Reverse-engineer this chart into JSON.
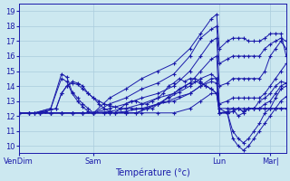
{
  "xlabel": "Température (°c)",
  "bg_color": "#cce8f0",
  "line_color": "#1a1aaa",
  "grid_color": "#aaccdd",
  "ylim": [
    9.5,
    19.5
  ],
  "yticks": [
    10,
    11,
    12,
    13,
    14,
    15,
    16,
    17,
    18,
    19
  ],
  "xtick_labels": [
    "VenDim",
    "Sam",
    "Lun",
    "Mar|"
  ],
  "xtick_positions": [
    0.0,
    0.28,
    0.75,
    0.94
  ],
  "series": [
    {
      "points": [
        [
          0,
          12.2
        ],
        [
          0.06,
          12.2
        ],
        [
          0.12,
          12.5
        ],
        [
          0.16,
          14.8
        ],
        [
          0.18,
          14.6
        ],
        [
          0.2,
          13.6
        ],
        [
          0.22,
          13.2
        ],
        [
          0.24,
          12.8
        ],
        [
          0.26,
          12.5
        ],
        [
          0.28,
          12.2
        ],
        [
          0.32,
          12.2
        ],
        [
          0.36,
          12.2
        ],
        [
          0.4,
          12.2
        ],
        [
          0.44,
          12.2
        ],
        [
          0.48,
          12.5
        ],
        [
          0.52,
          12.8
        ],
        [
          0.56,
          13.0
        ],
        [
          0.6,
          13.3
        ],
        [
          0.64,
          13.5
        ],
        [
          0.68,
          14.0
        ],
        [
          0.72,
          14.3
        ],
        [
          0.74,
          14.2
        ],
        [
          0.75,
          12.2
        ],
        [
          0.78,
          12.2
        ],
        [
          0.8,
          10.5
        ],
        [
          0.82,
          10.0
        ],
        [
          0.84,
          9.7
        ],
        [
          0.86,
          10.0
        ],
        [
          0.88,
          10.5
        ],
        [
          0.9,
          11.0
        ],
        [
          0.92,
          11.5
        ],
        [
          0.94,
          12.0
        ],
        [
          0.96,
          12.5
        ],
        [
          0.98,
          13.0
        ],
        [
          1.0,
          13.3
        ]
      ]
    },
    {
      "points": [
        [
          0,
          12.2
        ],
        [
          0.06,
          12.2
        ],
        [
          0.12,
          12.5
        ],
        [
          0.16,
          14.5
        ],
        [
          0.18,
          14.3
        ],
        [
          0.2,
          13.5
        ],
        [
          0.22,
          13.0
        ],
        [
          0.24,
          12.6
        ],
        [
          0.26,
          12.3
        ],
        [
          0.28,
          12.2
        ],
        [
          0.32,
          12.2
        ],
        [
          0.36,
          12.2
        ],
        [
          0.4,
          12.2
        ],
        [
          0.44,
          12.2
        ],
        [
          0.48,
          12.5
        ],
        [
          0.52,
          12.8
        ],
        [
          0.56,
          13.2
        ],
        [
          0.6,
          13.6
        ],
        [
          0.64,
          14.0
        ],
        [
          0.68,
          14.5
        ],
        [
          0.72,
          14.8
        ],
        [
          0.74,
          14.5
        ],
        [
          0.75,
          12.2
        ],
        [
          0.78,
          12.2
        ],
        [
          0.8,
          11.0
        ],
        [
          0.82,
          10.5
        ],
        [
          0.84,
          10.2
        ],
        [
          0.86,
          10.5
        ],
        [
          0.88,
          11.0
        ],
        [
          0.9,
          11.5
        ],
        [
          0.92,
          12.2
        ],
        [
          0.94,
          12.5
        ],
        [
          0.96,
          13.2
        ],
        [
          0.98,
          13.8
        ],
        [
          1.0,
          14.0
        ]
      ]
    },
    {
      "points": [
        [
          0,
          12.2
        ],
        [
          0.04,
          12.2
        ],
        [
          0.08,
          12.2
        ],
        [
          0.12,
          12.2
        ],
        [
          0.16,
          12.2
        ],
        [
          0.2,
          12.2
        ],
        [
          0.24,
          12.2
        ],
        [
          0.28,
          12.2
        ],
        [
          0.34,
          12.2
        ],
        [
          0.4,
          12.2
        ],
        [
          0.46,
          12.2
        ],
        [
          0.52,
          12.2
        ],
        [
          0.58,
          12.2
        ],
        [
          0.64,
          12.5
        ],
        [
          0.68,
          13.0
        ],
        [
          0.72,
          13.5
        ],
        [
          0.74,
          13.5
        ],
        [
          0.75,
          12.2
        ],
        [
          0.78,
          12.3
        ],
        [
          0.8,
          12.5
        ],
        [
          0.82,
          12.0
        ],
        [
          0.84,
          12.2
        ],
        [
          0.86,
          12.5
        ],
        [
          0.88,
          12.5
        ],
        [
          0.9,
          12.5
        ],
        [
          0.92,
          12.5
        ],
        [
          0.94,
          12.5
        ],
        [
          0.96,
          12.5
        ],
        [
          0.98,
          12.5
        ],
        [
          1.0,
          12.5
        ]
      ]
    },
    {
      "points": [
        [
          0,
          12.2
        ],
        [
          0.04,
          12.2
        ],
        [
          0.08,
          12.2
        ],
        [
          0.12,
          12.2
        ],
        [
          0.16,
          12.2
        ],
        [
          0.2,
          12.2
        ],
        [
          0.24,
          12.2
        ],
        [
          0.28,
          12.2
        ],
        [
          0.34,
          12.2
        ],
        [
          0.4,
          12.3
        ],
        [
          0.46,
          12.5
        ],
        [
          0.52,
          12.8
        ],
        [
          0.58,
          13.0
        ],
        [
          0.64,
          13.5
        ],
        [
          0.68,
          14.0
        ],
        [
          0.72,
          14.5
        ],
        [
          0.74,
          14.5
        ],
        [
          0.75,
          12.5
        ],
        [
          0.78,
          12.5
        ],
        [
          0.8,
          12.5
        ],
        [
          0.82,
          12.5
        ],
        [
          0.84,
          12.5
        ],
        [
          0.86,
          12.5
        ],
        [
          0.88,
          12.5
        ],
        [
          0.9,
          12.5
        ],
        [
          0.92,
          12.5
        ],
        [
          0.94,
          12.5
        ],
        [
          0.96,
          12.5
        ],
        [
          0.98,
          12.5
        ],
        [
          1.0,
          12.5
        ]
      ]
    },
    {
      "points": [
        [
          0,
          12.2
        ],
        [
          0.04,
          12.2
        ],
        [
          0.08,
          12.2
        ],
        [
          0.12,
          12.2
        ],
        [
          0.16,
          12.2
        ],
        [
          0.2,
          12.2
        ],
        [
          0.24,
          12.2
        ],
        [
          0.28,
          12.2
        ],
        [
          0.34,
          12.3
        ],
        [
          0.4,
          12.5
        ],
        [
          0.46,
          12.8
        ],
        [
          0.52,
          13.2
        ],
        [
          0.58,
          13.5
        ],
        [
          0.64,
          14.2
        ],
        [
          0.68,
          15.0
        ],
        [
          0.72,
          15.8
        ],
        [
          0.74,
          16.0
        ],
        [
          0.75,
          12.8
        ],
        [
          0.78,
          13.0
        ],
        [
          0.8,
          13.2
        ],
        [
          0.82,
          13.2
        ],
        [
          0.84,
          13.2
        ],
        [
          0.86,
          13.2
        ],
        [
          0.88,
          13.2
        ],
        [
          0.9,
          13.2
        ],
        [
          0.92,
          13.5
        ],
        [
          0.94,
          14.0
        ],
        [
          0.96,
          14.5
        ],
        [
          0.98,
          15.0
        ],
        [
          1.0,
          15.5
        ]
      ]
    },
    {
      "points": [
        [
          0,
          12.2
        ],
        [
          0.04,
          12.2
        ],
        [
          0.08,
          12.2
        ],
        [
          0.12,
          12.2
        ],
        [
          0.16,
          12.2
        ],
        [
          0.2,
          12.2
        ],
        [
          0.24,
          12.2
        ],
        [
          0.28,
          12.2
        ],
        [
          0.34,
          12.5
        ],
        [
          0.4,
          12.8
        ],
        [
          0.46,
          13.2
        ],
        [
          0.52,
          13.5
        ],
        [
          0.58,
          14.0
        ],
        [
          0.64,
          15.0
        ],
        [
          0.68,
          16.0
        ],
        [
          0.72,
          17.0
        ],
        [
          0.74,
          17.2
        ],
        [
          0.75,
          14.0
        ],
        [
          0.78,
          14.2
        ],
        [
          0.8,
          14.5
        ],
        [
          0.82,
          14.5
        ],
        [
          0.84,
          14.5
        ],
        [
          0.86,
          14.5
        ],
        [
          0.88,
          14.5
        ],
        [
          0.9,
          14.5
        ],
        [
          0.92,
          15.0
        ],
        [
          0.94,
          16.0
        ],
        [
          0.96,
          16.5
        ],
        [
          0.98,
          17.0
        ],
        [
          1.0,
          16.5
        ]
      ]
    },
    {
      "points": [
        [
          0,
          12.2
        ],
        [
          0.04,
          12.2
        ],
        [
          0.08,
          12.2
        ],
        [
          0.12,
          12.2
        ],
        [
          0.16,
          12.2
        ],
        [
          0.2,
          12.2
        ],
        [
          0.24,
          12.2
        ],
        [
          0.28,
          12.2
        ],
        [
          0.34,
          12.8
        ],
        [
          0.4,
          13.2
        ],
        [
          0.46,
          13.8
        ],
        [
          0.52,
          14.2
        ],
        [
          0.58,
          14.8
        ],
        [
          0.64,
          16.0
        ],
        [
          0.68,
          17.2
        ],
        [
          0.72,
          17.8
        ],
        [
          0.74,
          18.0
        ],
        [
          0.75,
          15.5
        ],
        [
          0.78,
          15.8
        ],
        [
          0.8,
          16.0
        ],
        [
          0.82,
          16.0
        ],
        [
          0.84,
          16.0
        ],
        [
          0.86,
          16.0
        ],
        [
          0.88,
          16.0
        ],
        [
          0.9,
          16.0
        ],
        [
          0.92,
          16.5
        ],
        [
          0.94,
          16.8
        ],
        [
          0.96,
          17.0
        ],
        [
          0.98,
          17.2
        ],
        [
          1.0,
          17.0
        ]
      ]
    },
    {
      "points": [
        [
          0,
          12.2
        ],
        [
          0.04,
          12.2
        ],
        [
          0.08,
          12.2
        ],
        [
          0.12,
          12.2
        ],
        [
          0.16,
          12.2
        ],
        [
          0.2,
          12.2
        ],
        [
          0.24,
          12.2
        ],
        [
          0.28,
          12.2
        ],
        [
          0.34,
          13.2
        ],
        [
          0.4,
          13.8
        ],
        [
          0.46,
          14.5
        ],
        [
          0.52,
          15.0
        ],
        [
          0.58,
          15.5
        ],
        [
          0.64,
          16.5
        ],
        [
          0.68,
          17.5
        ],
        [
          0.72,
          18.5
        ],
        [
          0.74,
          18.8
        ],
        [
          0.75,
          16.5
        ],
        [
          0.78,
          17.0
        ],
        [
          0.8,
          17.2
        ],
        [
          0.82,
          17.2
        ],
        [
          0.84,
          17.2
        ],
        [
          0.86,
          17.0
        ],
        [
          0.88,
          17.0
        ],
        [
          0.9,
          17.0
        ],
        [
          0.92,
          17.2
        ],
        [
          0.94,
          17.5
        ],
        [
          0.96,
          17.5
        ],
        [
          0.98,
          17.5
        ],
        [
          1.0,
          16.0
        ]
      ]
    },
    {
      "points": [
        [
          0,
          12.2
        ],
        [
          0.06,
          12.2
        ],
        [
          0.1,
          12.3
        ],
        [
          0.14,
          12.5
        ],
        [
          0.16,
          13.5
        ],
        [
          0.18,
          14.0
        ],
        [
          0.2,
          14.2
        ],
        [
          0.22,
          14.1
        ],
        [
          0.24,
          13.8
        ],
        [
          0.26,
          13.5
        ],
        [
          0.28,
          13.2
        ],
        [
          0.3,
          13.0
        ],
        [
          0.32,
          12.8
        ],
        [
          0.34,
          12.7
        ],
        [
          0.36,
          12.6
        ],
        [
          0.38,
          12.5
        ],
        [
          0.4,
          12.5
        ],
        [
          0.42,
          12.5
        ],
        [
          0.44,
          12.5
        ],
        [
          0.46,
          12.5
        ],
        [
          0.48,
          12.5
        ],
        [
          0.5,
          12.5
        ],
        [
          0.52,
          12.8
        ],
        [
          0.54,
          13.0
        ],
        [
          0.56,
          13.3
        ],
        [
          0.58,
          13.5
        ],
        [
          0.6,
          13.8
        ],
        [
          0.62,
          14.0
        ],
        [
          0.64,
          14.2
        ],
        [
          0.66,
          14.3
        ],
        [
          0.68,
          14.2
        ],
        [
          0.7,
          14.0
        ],
        [
          0.72,
          13.8
        ],
        [
          0.74,
          13.5
        ],
        [
          0.75,
          12.5
        ],
        [
          0.78,
          12.2
        ],
        [
          0.8,
          12.3
        ],
        [
          0.82,
          12.5
        ],
        [
          0.84,
          12.3
        ],
        [
          0.86,
          12.5
        ],
        [
          0.88,
          12.5
        ],
        [
          0.9,
          12.5
        ],
        [
          0.92,
          12.8
        ],
        [
          0.94,
          13.0
        ],
        [
          0.96,
          13.5
        ],
        [
          0.98,
          14.0
        ],
        [
          1.0,
          14.2
        ]
      ]
    },
    {
      "points": [
        [
          0,
          12.2
        ],
        [
          0.06,
          12.2
        ],
        [
          0.1,
          12.3
        ],
        [
          0.14,
          12.5
        ],
        [
          0.16,
          13.5
        ],
        [
          0.18,
          14.0
        ],
        [
          0.2,
          14.3
        ],
        [
          0.22,
          14.2
        ],
        [
          0.24,
          14.0
        ],
        [
          0.26,
          13.5
        ],
        [
          0.28,
          13.2
        ],
        [
          0.3,
          12.8
        ],
        [
          0.32,
          12.5
        ],
        [
          0.34,
          12.3
        ],
        [
          0.36,
          12.2
        ],
        [
          0.38,
          12.5
        ],
        [
          0.4,
          12.8
        ],
        [
          0.42,
          13.0
        ],
        [
          0.44,
          13.0
        ],
        [
          0.46,
          12.8
        ],
        [
          0.48,
          12.8
        ],
        [
          0.5,
          13.0
        ],
        [
          0.52,
          13.2
        ],
        [
          0.54,
          13.5
        ],
        [
          0.56,
          14.0
        ],
        [
          0.58,
          14.2
        ],
        [
          0.6,
          14.5
        ],
        [
          0.62,
          14.3
        ],
        [
          0.64,
          14.5
        ],
        [
          0.66,
          14.5
        ],
        [
          0.68,
          14.3
        ],
        [
          0.7,
          14.0
        ],
        [
          0.72,
          13.8
        ],
        [
          0.74,
          13.5
        ],
        [
          0.75,
          12.2
        ],
        [
          0.78,
          12.2
        ],
        [
          0.8,
          12.3
        ],
        [
          0.82,
          12.5
        ],
        [
          0.84,
          12.3
        ],
        [
          0.86,
          12.5
        ],
        [
          0.88,
          12.5
        ],
        [
          0.9,
          13.0
        ],
        [
          0.92,
          13.2
        ],
        [
          0.94,
          13.5
        ],
        [
          0.96,
          14.0
        ],
        [
          0.98,
          14.3
        ],
        [
          1.0,
          14.2
        ]
      ]
    }
  ]
}
